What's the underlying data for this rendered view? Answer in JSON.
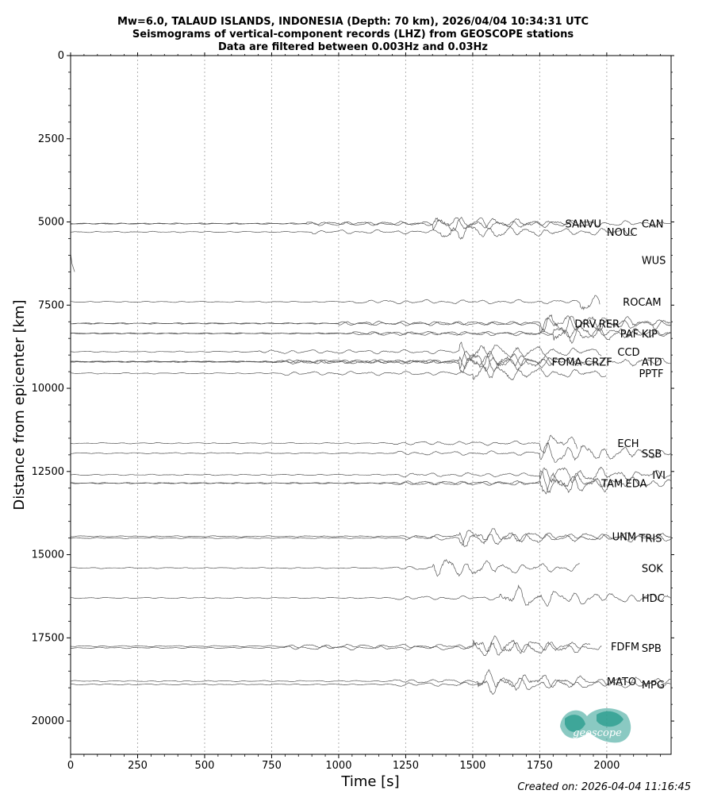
{
  "title": {
    "line1": "Mw=6.0, TALAUD ISLANDS, INDONESIA (Depth: 70 km), 2026/04/04 10:34:31 UTC",
    "line2": "Seismograms of vertical-component records (LHZ) from GEOSCOPE stations",
    "line3": "Data are filtered between 0.003Hz and 0.03Hz"
  },
  "footer": "Created on: 2026-04-04 11:16:45",
  "logo_text": "geoscope",
  "colors": {
    "trace": "#555555",
    "grid": "#b0b0b0",
    "logo": "#2a9d8f"
  },
  "chart_data": {
    "type": "line",
    "title": "Mw=6.0, TALAUD ISLANDS, INDONESIA (Depth: 70 km), 2026/04/04 10:34:31 UTC",
    "xlabel": "Time [s]",
    "ylabel": "Distance from epicenter [km]",
    "xlim": [
      0,
      2240
    ],
    "ylim": [
      21000,
      0
    ],
    "y_inverted": true,
    "grid": "vertical dotted at x ticks",
    "x_ticks": [
      "0",
      "250",
      "500",
      "750",
      "1000",
      "1250",
      "1500",
      "1750",
      "2000"
    ],
    "y_ticks": [
      "0",
      "2500",
      "5000",
      "7500",
      "10000",
      "12500",
      "15000",
      "17500",
      "20000"
    ],
    "stations": [
      {
        "name": "SANVU",
        "distance": 5050,
        "end": 1960,
        "p_arrival": 880,
        "s_arrival": 1350,
        "amp": 300,
        "label_x": 1845
      },
      {
        "name": "CAN",
        "distance": 5050,
        "end": 2240,
        "p_arrival": 880,
        "s_arrival": 1350,
        "amp": 250,
        "label_x": 2130
      },
      {
        "name": "NOUC",
        "distance": 5300,
        "end": 2100,
        "p_arrival": 900,
        "s_arrival": 1380,
        "amp": 300,
        "label_x": 2000
      },
      {
        "name": "WUS",
        "distance": 6150,
        "end": 15,
        "p_arrival": 0,
        "s_arrival": 0,
        "amp": 200,
        "label_x": 2130
      },
      {
        "name": "ROCAM",
        "distance": 7400,
        "end": 1975,
        "p_arrival": 1050,
        "s_arrival": 1900,
        "amp": 300,
        "label_x": 2060
      },
      {
        "name": "DRV",
        "distance": 8050,
        "end": 2240,
        "p_arrival": 1000,
        "s_arrival": 1750,
        "amp": 400,
        "label_x": 1880
      },
      {
        "name": "RER",
        "distance": 8050,
        "end": 2240,
        "p_arrival": 1000,
        "s_arrival": 1750,
        "amp": 300,
        "label_x": 1970
      },
      {
        "name": "PAF",
        "distance": 8350,
        "end": 2240,
        "p_arrival": 1050,
        "s_arrival": 1800,
        "amp": 350,
        "label_x": 2050
      },
      {
        "name": "KIP",
        "distance": 8350,
        "end": 2240,
        "p_arrival": 1050,
        "s_arrival": 1800,
        "amp": 250,
        "label_x": 2130
      },
      {
        "name": "CCD",
        "distance": 8900,
        "end": 1980,
        "p_arrival": 700,
        "s_arrival": 1450,
        "amp": 350,
        "label_x": 2040
      },
      {
        "name": "ATD",
        "distance": 9200,
        "end": 2240,
        "p_arrival": 750,
        "s_arrival": 1450,
        "amp": 350,
        "label_x": 2130
      },
      {
        "name": "FOMA",
        "distance": 9200,
        "end": 1800,
        "p_arrival": 750,
        "s_arrival": 1450,
        "amp": 350,
        "label_x": 1795
      },
      {
        "name": "CRZF",
        "distance": 9200,
        "end": 1950,
        "p_arrival": 750,
        "s_arrival": 1450,
        "amp": 350,
        "label_x": 1918
      },
      {
        "name": "PPTF",
        "distance": 9550,
        "end": 2000,
        "p_arrival": 780,
        "s_arrival": 1500,
        "amp": 300,
        "label_x": 2120
      },
      {
        "name": "ECH",
        "distance": 11650,
        "end": 1890,
        "p_arrival": 1200,
        "s_arrival": 1750,
        "amp": 300,
        "label_x": 2040
      },
      {
        "name": "SSB",
        "distance": 11950,
        "end": 2240,
        "p_arrival": 1200,
        "s_arrival": 1750,
        "amp": 400,
        "label_x": 2130
      },
      {
        "name": "IVI",
        "distance": 12600,
        "end": 2240,
        "p_arrival": 1200,
        "s_arrival": 1750,
        "amp": 350,
        "label_x": 2170
      },
      {
        "name": "EDA",
        "distance": 12850,
        "end": 2240,
        "p_arrival": 1200,
        "s_arrival": 1750,
        "amp": 400,
        "label_x": 2070
      },
      {
        "name": "TAM",
        "distance": 12850,
        "end": 2000,
        "p_arrival": 1200,
        "s_arrival": 1750,
        "amp": 350,
        "label_x": 1980
      },
      {
        "name": "UNM",
        "distance": 14450,
        "end": 2240,
        "p_arrival": 1250,
        "s_arrival": 1450,
        "amp": 300,
        "label_x": 2020
      },
      {
        "name": "TRIS",
        "distance": 14500,
        "end": 2240,
        "p_arrival": 1250,
        "s_arrival": 1450,
        "amp": 300,
        "label_x": 2120
      },
      {
        "name": "SOK",
        "distance": 15400,
        "end": 1900,
        "p_arrival": 1200,
        "s_arrival": 1350,
        "amp": 350,
        "label_x": 2130
      },
      {
        "name": "HDC",
        "distance": 16300,
        "end": 2240,
        "p_arrival": 1200,
        "s_arrival": 1600,
        "amp": 400,
        "label_x": 2130
      },
      {
        "name": "FDFM",
        "distance": 17750,
        "end": 1940,
        "p_arrival": 800,
        "s_arrival": 1500,
        "amp": 350,
        "label_x": 2015
      },
      {
        "name": "SPB",
        "distance": 17800,
        "end": 1980,
        "p_arrival": 800,
        "s_arrival": 1500,
        "amp": 350,
        "label_x": 2130
      },
      {
        "name": "MATO",
        "distance": 18800,
        "end": 2240,
        "p_arrival": 1200,
        "s_arrival": 1520,
        "amp": 350,
        "label_x": 2000
      },
      {
        "name": "MPG",
        "distance": 18900,
        "end": 2240,
        "p_arrival": 1200,
        "s_arrival": 1520,
        "amp": 300,
        "label_x": 2130
      }
    ]
  }
}
